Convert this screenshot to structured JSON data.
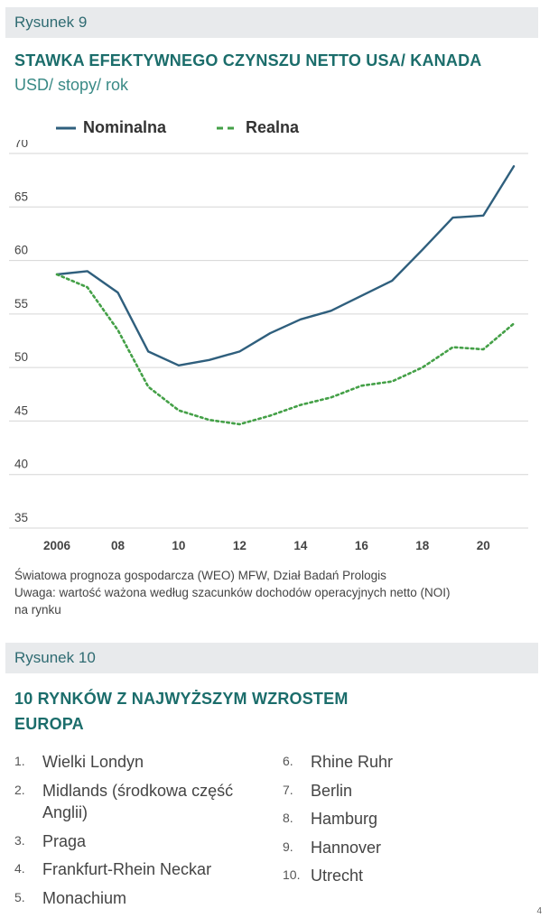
{
  "figure9": {
    "label": "Rysunek 9",
    "title": "STAWKA EFEKTYWNEGO CZYNSZU NETTO USA/ KANADA",
    "subtitle": "USD/ stopy/ rok",
    "source_line1": "Światowa prognoza gospodarcza (WEO) MFW, Dział Badań Prologis",
    "source_line2": "Uwaga: wartość ważona według szacunków dochodów operacyjnych netto (NOI)",
    "source_line3": "na rynku"
  },
  "chart_data": {
    "type": "line",
    "title": "STAWKA EFEKTYWNEGO CZYNSZU NETTO USA/ KANADA",
    "subtitle": "USD/ stopy/ rok",
    "xlabel": "",
    "ylabel": "",
    "x": [
      2006,
      2007,
      2008,
      2009,
      2010,
      2011,
      2012,
      2013,
      2014,
      2015,
      2016,
      2017,
      2018,
      2019,
      2020,
      2021
    ],
    "xticks": [
      2006,
      2008,
      2010,
      2012,
      2014,
      2016,
      2018,
      2020
    ],
    "xtick_labels": [
      "2006",
      "08",
      "10",
      "12",
      "14",
      "16",
      "18",
      "20"
    ],
    "yticks": [
      35,
      40,
      45,
      50,
      55,
      60,
      65,
      70
    ],
    "ytick_labels": [
      "35",
      "40",
      "45",
      "50",
      "55",
      "60",
      "65",
      "70"
    ],
    "xlim": [
      2006,
      2021
    ],
    "ylim": [
      35,
      70
    ],
    "grid": true,
    "legend_position": "top-left",
    "series": [
      {
        "name": "Nominalna",
        "style": "solid",
        "color": "#2f5f7d",
        "values": [
          58.7,
          59.0,
          57.0,
          51.5,
          50.2,
          50.7,
          51.5,
          53.2,
          54.5,
          55.3,
          56.7,
          58.1,
          61.0,
          64.0,
          64.2,
          68.8
        ]
      },
      {
        "name": "Realna",
        "style": "dotted",
        "color": "#44a047",
        "values": [
          58.7,
          57.5,
          53.5,
          48.2,
          46.0,
          45.1,
          44.7,
          45.5,
          46.5,
          47.2,
          48.3,
          48.7,
          50.0,
          51.9,
          51.7,
          54.1
        ]
      }
    ]
  },
  "figure10": {
    "label": "Rysunek 10",
    "title_line1": "10 RYNKÓW Z NAJWYŻSZYM WZROSTEM",
    "title_line2": "EUROPA",
    "left": [
      {
        "num": "1.",
        "line1": "Wielki Londyn"
      },
      {
        "num": "2.",
        "line1": "Midlands (środkowa część",
        "line2": "Anglii)"
      },
      {
        "num": "3.",
        "line1": "Praga"
      },
      {
        "num": "4.",
        "line1": "Frankfurt-Rhein Neckar"
      },
      {
        "num": "5.",
        "line1": "Monachium"
      }
    ],
    "right": [
      {
        "num": "6.",
        "line1": "Rhine Ruhr"
      },
      {
        "num": "7.",
        "line1": "Berlin"
      },
      {
        "num": "8.",
        "line1": "Hamburg"
      },
      {
        "num": "9.",
        "line1": "Hannover"
      },
      {
        "num": "10.",
        "line1": "Utrecht"
      }
    ]
  },
  "page_number": "4"
}
